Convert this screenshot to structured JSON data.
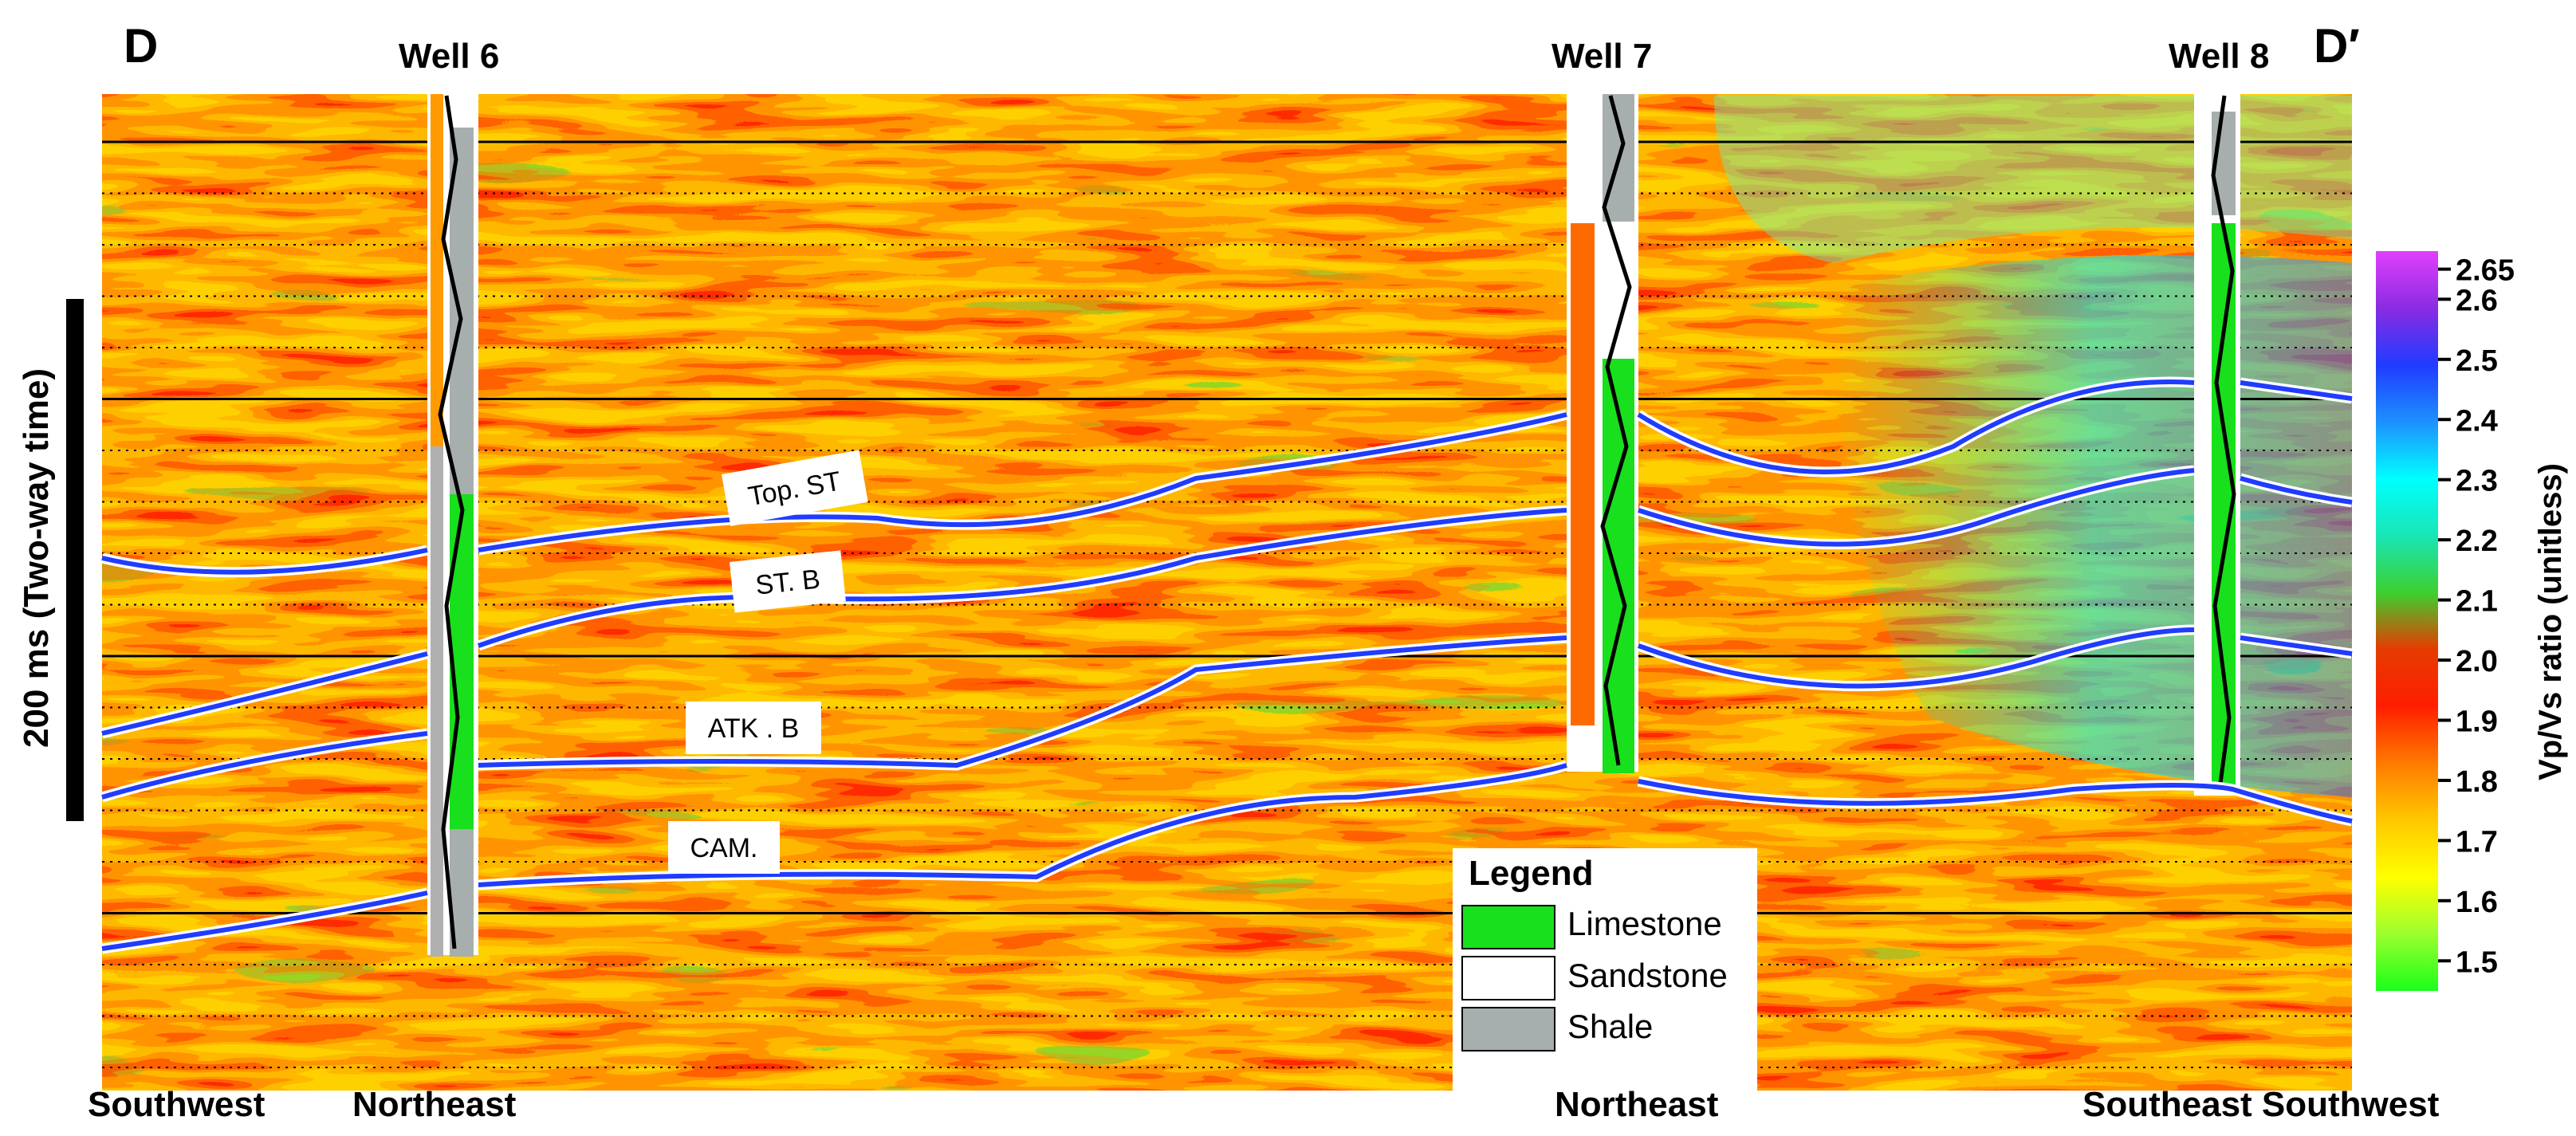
{
  "section": {
    "start_label": "D",
    "end_label": "D′",
    "time_scale_label": "200 ms (Two-way time)"
  },
  "wells": [
    {
      "name": "Well 6"
    },
    {
      "name": "Well 7"
    },
    {
      "name": "Well 8"
    }
  ],
  "directions": [
    "Southwest",
    "Northeast",
    "Northeast",
    "Southeast Southwest"
  ],
  "horizons": [
    {
      "name": "Top. ST",
      "color": "#1f3cff"
    },
    {
      "name": "ST. B",
      "color": "#1f3cff"
    },
    {
      "name": "ATK . B",
      "color": "#1f3cff"
    },
    {
      "name": "CAM.",
      "color": "#1f3cff"
    }
  ],
  "legend": {
    "title": "Legend",
    "items": [
      {
        "label": "Limestone",
        "color": "#18e01c"
      },
      {
        "label": "Sandstone",
        "color": "#ffffff"
      },
      {
        "label": "Shale",
        "color": "#a7aeae"
      }
    ]
  },
  "colorbar": {
    "title": "Vp/Vs ratio (unitless)",
    "ticks": [
      "2.65",
      "2.6",
      "2.5",
      "2.4",
      "2.3",
      "2.2",
      "2.1",
      "2.0",
      "1.9",
      "1.8",
      "1.7",
      "1.6",
      "1.5"
    ],
    "tick_values": [
      2.65,
      2.6,
      2.5,
      2.4,
      2.3,
      2.2,
      2.1,
      2.0,
      1.9,
      1.8,
      1.7,
      1.6,
      1.5
    ],
    "range": [
      1.45,
      2.68
    ],
    "colors": [
      "#1aff1a",
      "#9cff2e",
      "#ffff00",
      "#ffc800",
      "#ff7a00",
      "#ff1e00",
      "#e63b00",
      "#3dcf2f",
      "#19e6b4",
      "#00ffff",
      "#1e90ff",
      "#1f3cff",
      "#8a2be2",
      "#e040fb"
    ]
  }
}
